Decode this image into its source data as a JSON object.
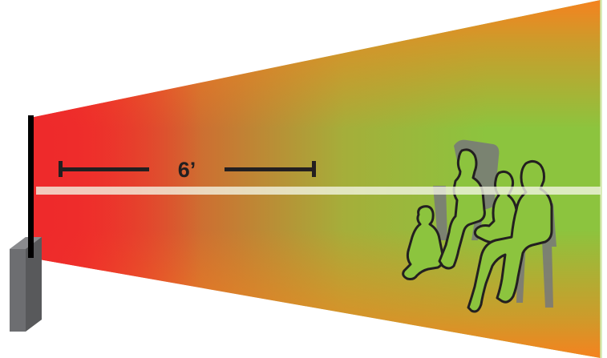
{
  "diagram": {
    "distance_label": "6’",
    "colors": {
      "near_zone": "#ee2a2b",
      "mid_zone": "#f5821f",
      "far_zone": "#8cc43e",
      "measure_line": "#231f20",
      "sightline": "#f4f6e6",
      "stand": "#6d6e71",
      "chair": "#77787b",
      "person_outline": "#231f20"
    },
    "icons": {
      "screen": "tv-screen-icon",
      "stand": "tv-stand-icon",
      "viewers": "seated-viewers-icon"
    }
  }
}
